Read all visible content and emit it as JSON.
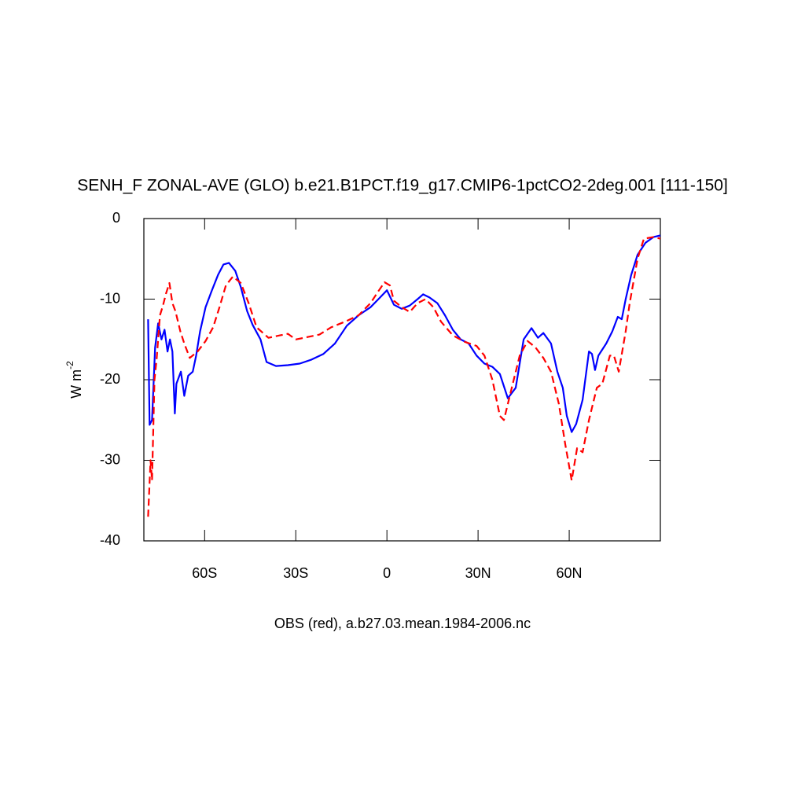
{
  "chart_data": {
    "type": "line",
    "title": "SENH_F ZONAL-AVE (GLO) b.e21.B1PCT.f19_g17.CMIP6-1pctCO2-2deg.001 [111-150]",
    "y_label": "W m",
    "y_label_sup": "-2",
    "footer": "OBS (red), a.b27.03.mean.1984-2006.nc",
    "xlim": [
      -80,
      90
    ],
    "xticks": [
      {
        "value": -60,
        "label": "60S"
      },
      {
        "value": -30,
        "label": "30S"
      },
      0,
      {
        "value": 30,
        "label": "30N"
      },
      {
        "value": 60,
        "label": "60N"
      }
    ],
    "ylim": [
      -40,
      0
    ],
    "yticks": [
      0,
      -10,
      -20,
      -30,
      -40
    ],
    "series": [
      {
        "color": "#0000ff",
        "dash": "solid",
        "x": [
          -78.6,
          -78.1,
          -77.3,
          -76.3,
          -75.3,
          -74.2,
          -73.2,
          -72.2,
          -71.4,
          -70.6,
          -69.8,
          -69.3,
          -67.8,
          -66.7,
          -65.4,
          -63.9,
          -62.8,
          -61.5,
          -59.7,
          -57.7,
          -55.6,
          -53.8,
          -52.0,
          -49.9,
          -48.1,
          -46.0,
          -44.2,
          -41.6,
          -39.6,
          -36.5,
          -32.6,
          -28.7,
          -24.8,
          -20.9,
          -17.1,
          -13.2,
          -9.3,
          -5.4,
          -2.8,
          0,
          2.3,
          4.9,
          7.5,
          10.1,
          11.9,
          14.0,
          16.6,
          19.1,
          21.7,
          24.3,
          26.9,
          29.5,
          32.1,
          34.7,
          37.2,
          39.8,
          42.4,
          45.0,
          47.6,
          49.7,
          51.5,
          54.0,
          56.1,
          57.9,
          59.2,
          60.8,
          62.3,
          64.4,
          66.5,
          67.5,
          68.5,
          69.6,
          72.2,
          74.2,
          76.0,
          77.3,
          78.6,
          80.4,
          82.5,
          85.1,
          87.7,
          90
        ],
        "values": [
          -12.5,
          -25.6,
          -25,
          -16,
          -13,
          -15,
          -13.8,
          -16.5,
          -15,
          -16.5,
          -24.2,
          -20.5,
          -19,
          -22,
          -19.5,
          -19,
          -17,
          -14,
          -11,
          -9,
          -7,
          -5.7,
          -5.5,
          -6.5,
          -8.5,
          -11.5,
          -13.2,
          -15,
          -17.8,
          -18.3,
          -18.2,
          -18,
          -17.5,
          -16.8,
          -15.5,
          -13.3,
          -12,
          -11,
          -10,
          -8.9,
          -10.7,
          -11.2,
          -10.8,
          -10,
          -9.4,
          -9.8,
          -10.5,
          -12,
          -13.8,
          -15,
          -15.5,
          -17,
          -18,
          -18.4,
          -19.3,
          -22.3,
          -21,
          -15,
          -13.6,
          -14.8,
          -14.2,
          -15.5,
          -19,
          -21,
          -24.5,
          -26.5,
          -25.5,
          -22.5,
          -16.5,
          -16.8,
          -18.8,
          -17,
          -15.5,
          -14,
          -12.2,
          -12.5,
          -10,
          -7,
          -4.5,
          -3,
          -2.3,
          -2.1
        ]
      },
      {
        "color": "#ff0000",
        "dash": "dashed",
        "x": [
          -78.6,
          -77.8,
          -77.3,
          -76.5,
          -75.8,
          -74.7,
          -73.7,
          -72.7,
          -71.6,
          -70.6,
          -69.6,
          -68.0,
          -66.7,
          -64.9,
          -62.3,
          -59.7,
          -57.2,
          -55.1,
          -53.0,
          -50.7,
          -48.1,
          -45.5,
          -42.9,
          -39.0,
          -35.2,
          -32.6,
          -30.0,
          -26.1,
          -22.2,
          -18.4,
          -13.2,
          -9.3,
          -5.4,
          -2.8,
          -0.8,
          1.0,
          2.3,
          4.9,
          7.5,
          10.1,
          12.7,
          15.3,
          17.8,
          21.7,
          25.6,
          29.5,
          32.1,
          34.7,
          37.2,
          38.5,
          41.1,
          43.7,
          46.3,
          48.9,
          51.5,
          54.0,
          56.6,
          58.7,
          60.8,
          62.6,
          64.4,
          66.5,
          69.1,
          70.9,
          73.4,
          74.7,
          76.3,
          78.6,
          79.9,
          82.5,
          84.6,
          87.7,
          90
        ],
        "values": [
          -37,
          -30,
          -32.5,
          -20,
          -17.5,
          -12,
          -10.8,
          -9.3,
          -8,
          -10.5,
          -11.5,
          -14,
          -15.5,
          -17.3,
          -16.5,
          -15.2,
          -13.5,
          -11,
          -8.3,
          -7.2,
          -8,
          -10.5,
          -13.5,
          -14.8,
          -14.5,
          -14.3,
          -15,
          -14.7,
          -14.4,
          -13.5,
          -12.7,
          -12,
          -10.5,
          -9,
          -7.9,
          -8.3,
          -10.2,
          -11,
          -11.6,
          -10.5,
          -10,
          -11,
          -12.8,
          -14.5,
          -15.3,
          -15.8,
          -17,
          -20,
          -24.5,
          -25,
          -21,
          -17,
          -15.2,
          -16,
          -17.3,
          -19,
          -23,
          -28,
          -32.5,
          -28.5,
          -29,
          -25,
          -21,
          -20.5,
          -17,
          -17,
          -19,
          -14,
          -10.5,
          -5,
          -2.5,
          -2.3,
          -2.5
        ]
      }
    ]
  }
}
